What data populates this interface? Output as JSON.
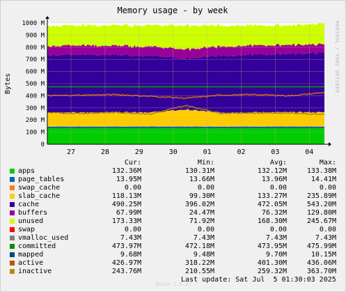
{
  "chart_data": {
    "type": "area",
    "title": "Memory usage - by week",
    "ylabel": "Bytes",
    "ylim": [
      0,
      1000
    ],
    "y_unit": "M",
    "y_ticks": [
      "0",
      "100 M",
      "200 M",
      "300 M",
      "400 M",
      "500 M",
      "600 M",
      "700 M",
      "800 M",
      "900 M",
      "1000 M"
    ],
    "x_ticks": [
      "27",
      "28",
      "29",
      "30",
      "01",
      "02",
      "03",
      "04"
    ],
    "grid": true,
    "stacked": true,
    "series": [
      {
        "name": "apps",
        "color": "#00cc00",
        "approx_values_M": [
          132,
          132,
          132,
          132,
          132,
          132,
          132,
          132,
          132
        ]
      },
      {
        "name": "page_tables",
        "color": "#0066b3",
        "approx_values_M": [
          14,
          14,
          14,
          14,
          14,
          14,
          14,
          14,
          14
        ]
      },
      {
        "name": "slab_cache",
        "color": "#ffcc00",
        "approx_values_M": [
          118,
          115,
          120,
          118,
          140,
          116,
          118,
          118,
          118
        ]
      },
      {
        "name": "cache",
        "color": "#330099",
        "approx_values_M": [
          472,
          480,
          470,
          465,
          420,
          470,
          475,
          480,
          490
        ]
      },
      {
        "name": "buffers",
        "color": "#990099",
        "approx_values_M": [
          76,
          76,
          76,
          76,
          76,
          76,
          76,
          76,
          68
        ]
      },
      {
        "name": "unused",
        "color": "#ccff00",
        "approx_values_M": [
          168,
          163,
          168,
          175,
          198,
          172,
          165,
          160,
          173
        ]
      },
      {
        "name": "committed",
        "color": "#00aa00",
        "line": true,
        "approx_values_M": [
          474,
          474,
          474,
          474,
          474,
          474,
          474,
          474,
          474
        ]
      },
      {
        "name": "active",
        "color": "#cc7700",
        "line": true,
        "approx_values_M": [
          401,
          405,
          410,
          395,
          380,
          405,
          410,
          400,
          427
        ]
      },
      {
        "name": "inactive",
        "color": "#a08020",
        "line": true,
        "approx_values_M": [
          259,
          255,
          262,
          250,
          320,
          256,
          258,
          258,
          244
        ]
      }
    ]
  },
  "legend": {
    "headers": {
      "cur": "Cur:",
      "min": "Min:",
      "avg": "Avg:",
      "max": "Max:"
    },
    "rows": [
      {
        "name": "apps",
        "color": "#00cc00",
        "cur": "132.36M",
        "min": "130.31M",
        "avg": "132.12M",
        "max": "133.38M"
      },
      {
        "name": "page_tables",
        "color": "#0066b3",
        "cur": "13.95M",
        "min": "13.66M",
        "avg": "13.96M",
        "max": "14.41M"
      },
      {
        "name": "swap_cache",
        "color": "#ff8000",
        "cur": "0.00",
        "min": "0.00",
        "avg": "0.00",
        "max": "0.00"
      },
      {
        "name": "slab_cache",
        "color": "#ffcc00",
        "cur": "118.13M",
        "min": "99.30M",
        "avg": "133.27M",
        "max": "235.89M"
      },
      {
        "name": "cache",
        "color": "#330099",
        "cur": "490.25M",
        "min": "396.02M",
        "avg": "472.05M",
        "max": "543.20M"
      },
      {
        "name": "buffers",
        "color": "#990099",
        "cur": "67.99M",
        "min": "24.47M",
        "avg": "76.32M",
        "max": "129.80M"
      },
      {
        "name": "unused",
        "color": "#ccff00",
        "cur": "173.33M",
        "min": "71.92M",
        "avg": "168.30M",
        "max": "245.67M"
      },
      {
        "name": "swap",
        "color": "#ff0000",
        "cur": "0.00",
        "min": "0.00",
        "avg": "0.00",
        "max": "0.00"
      },
      {
        "name": "vmalloc_used",
        "color": "#808080",
        "cur": "7.43M",
        "min": "7.43M",
        "avg": "7.43M",
        "max": "7.43M"
      },
      {
        "name": "committed",
        "color": "#008f00",
        "cur": "473.97M",
        "min": "472.18M",
        "avg": "473.95M",
        "max": "475.99M"
      },
      {
        "name": "mapped",
        "color": "#00487d",
        "cur": "9.68M",
        "min": "9.48M",
        "avg": "9.70M",
        "max": "10.15M"
      },
      {
        "name": "active",
        "color": "#b35a00",
        "cur": "426.97M",
        "min": "318.22M",
        "avg": "401.30M",
        "max": "436.06M"
      },
      {
        "name": "inactive",
        "color": "#b38f00",
        "cur": "243.76M",
        "min": "210.55M",
        "avg": "259.32M",
        "max": "363.70M"
      }
    ]
  },
  "footer": {
    "last_update": "Last update: Sat Jul  5 01:30:03 2025",
    "munin": "Munin 2.0.37"
  },
  "side_text": "RRDTOOL / TOBI OETIKER"
}
